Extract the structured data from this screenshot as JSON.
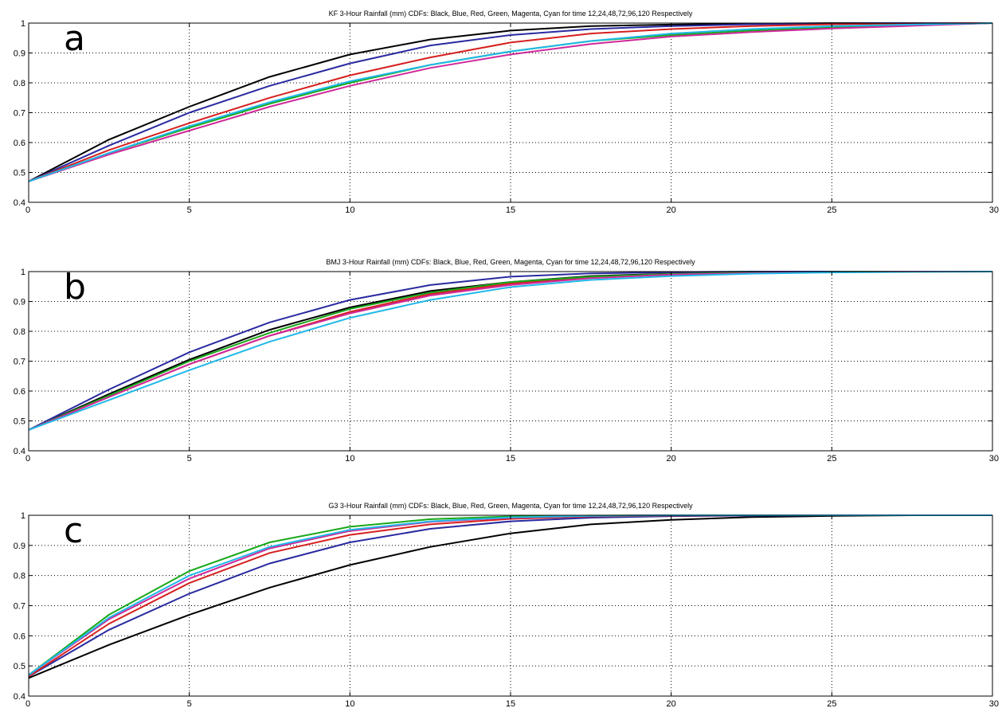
{
  "figure": {
    "x_domain": [
      0,
      30
    ],
    "y_domain": [
      0.4,
      1
    ],
    "x_ticks": [
      0,
      5,
      10,
      15,
      20,
      25,
      30
    ],
    "y_ticks": [
      0.4,
      0.5,
      0.6,
      0.7,
      0.8,
      0.9,
      1
    ],
    "x_tick_labels": [
      "0",
      "5",
      "10",
      "15",
      "20",
      "25",
      "30"
    ],
    "y_tick_labels": [
      "0.4",
      "0.5",
      "0.6",
      "0.7",
      "0.8",
      "0.9",
      "1"
    ]
  },
  "colors": {
    "black": "#000000",
    "blue": "#2a2aa0",
    "red": "#d62020",
    "green": "#18a818",
    "magenta": "#d0289a",
    "cyan": "#20b8e8"
  },
  "chart_data": [
    {
      "type": "line",
      "panel_letter": "a",
      "title": "KF 3-Hour Rainfall (mm) CDFs: Black, Blue, Red, Green, Magenta, Cyan for time 12,24,48,72,96,120 Respectively",
      "xlim": [
        0,
        30
      ],
      "ylim": [
        0.4,
        1
      ],
      "grid": true,
      "x": [
        0,
        2.5,
        5,
        7.5,
        10,
        12.5,
        15,
        17.5,
        20,
        22.5,
        25,
        27.5,
        30
      ],
      "series": [
        {
          "color": "#000000",
          "values": [
            0.47,
            0.61,
            0.72,
            0.82,
            0.895,
            0.945,
            0.975,
            0.99,
            0.995,
            0.998,
            1.0,
            1.0,
            1.0
          ]
        },
        {
          "color": "#2a2aa0",
          "values": [
            0.47,
            0.59,
            0.7,
            0.79,
            0.865,
            0.925,
            0.96,
            0.98,
            0.99,
            0.996,
            0.999,
            1.0,
            1.0
          ]
        },
        {
          "color": "#d62020",
          "values": [
            0.47,
            0.575,
            0.665,
            0.75,
            0.825,
            0.885,
            0.935,
            0.965,
            0.98,
            0.99,
            0.996,
            0.999,
            1.0
          ]
        },
        {
          "color": "#18a818",
          "values": [
            0.47,
            0.565,
            0.65,
            0.73,
            0.8,
            0.86,
            0.905,
            0.94,
            0.96,
            0.975,
            0.985,
            0.993,
            1.0
          ]
        },
        {
          "color": "#d0289a",
          "values": [
            0.47,
            0.56,
            0.64,
            0.72,
            0.79,
            0.85,
            0.895,
            0.93,
            0.955,
            0.97,
            0.982,
            0.991,
            1.0
          ]
        },
        {
          "color": "#20b8e8",
          "values": [
            0.47,
            0.565,
            0.655,
            0.735,
            0.805,
            0.86,
            0.905,
            0.94,
            0.965,
            0.98,
            0.99,
            0.995,
            1.0
          ]
        }
      ]
    },
    {
      "type": "line",
      "panel_letter": "b",
      "title": "BMJ 3-Hour Rainfall (mm) CDFs: Black, Blue, Red, Green, Magenta, Cyan for time 12,24,48,72,96,120 Respectively",
      "xlim": [
        0,
        30
      ],
      "ylim": [
        0.4,
        1
      ],
      "grid": true,
      "x": [
        0,
        2.5,
        5,
        7.5,
        10,
        12.5,
        15,
        17.5,
        20,
        22.5,
        25,
        27.5,
        30
      ],
      "series": [
        {
          "color": "#000000",
          "values": [
            0.47,
            0.59,
            0.705,
            0.805,
            0.88,
            0.935,
            0.965,
            0.985,
            0.993,
            0.997,
            0.999,
            1.0,
            1.0
          ]
        },
        {
          "color": "#2a2aa0",
          "values": [
            0.47,
            0.605,
            0.73,
            0.83,
            0.905,
            0.955,
            0.983,
            0.994,
            0.998,
            1.0,
            1.0,
            1.0,
            1.0
          ]
        },
        {
          "color": "#d62020",
          "values": [
            0.47,
            0.58,
            0.69,
            0.785,
            0.865,
            0.925,
            0.96,
            0.98,
            0.99,
            0.996,
            0.999,
            1.0,
            1.0
          ]
        },
        {
          "color": "#18a818",
          "values": [
            0.47,
            0.585,
            0.7,
            0.795,
            0.875,
            0.93,
            0.965,
            0.983,
            0.992,
            0.997,
            0.999,
            1.0,
            1.0
          ]
        },
        {
          "color": "#d0289a",
          "values": [
            0.47,
            0.58,
            0.69,
            0.785,
            0.86,
            0.92,
            0.955,
            0.978,
            0.99,
            0.995,
            0.998,
            1.0,
            1.0
          ]
        },
        {
          "color": "#20b8e8",
          "values": [
            0.47,
            0.57,
            0.67,
            0.765,
            0.845,
            0.905,
            0.948,
            0.972,
            0.985,
            0.993,
            0.997,
            0.999,
            1.0
          ]
        }
      ]
    },
    {
      "type": "line",
      "panel_letter": "c",
      "title": "G3 3-Hour Rainfall (mm) CDFs: Black, Blue, Red, Green, Magenta, Cyan for time 12,24,48,72,96,120 Respectively",
      "xlim": [
        0,
        30
      ],
      "ylim": [
        0.4,
        1
      ],
      "grid": true,
      "x": [
        0,
        2.5,
        5,
        7.5,
        10,
        12.5,
        15,
        17.5,
        20,
        22.5,
        25,
        27.5,
        30
      ],
      "series": [
        {
          "color": "#000000",
          "values": [
            0.46,
            0.57,
            0.67,
            0.76,
            0.835,
            0.895,
            0.94,
            0.97,
            0.985,
            0.994,
            0.998,
            1.0,
            1.0
          ]
        },
        {
          "color": "#2a2aa0",
          "values": [
            0.465,
            0.62,
            0.74,
            0.84,
            0.91,
            0.955,
            0.98,
            0.992,
            0.997,
            0.999,
            1.0,
            1.0,
            1.0
          ]
        },
        {
          "color": "#d62020",
          "values": [
            0.465,
            0.64,
            0.775,
            0.875,
            0.935,
            0.97,
            0.988,
            0.996,
            0.999,
            1.0,
            1.0,
            1.0,
            1.0
          ]
        },
        {
          "color": "#18a818",
          "values": [
            0.47,
            0.67,
            0.815,
            0.91,
            0.962,
            0.987,
            0.996,
            0.999,
            1.0,
            1.0,
            1.0,
            1.0,
            1.0
          ]
        },
        {
          "color": "#d0289a",
          "values": [
            0.47,
            0.655,
            0.79,
            0.89,
            0.948,
            0.978,
            0.992,
            0.998,
            1.0,
            1.0,
            1.0,
            1.0,
            1.0
          ]
        },
        {
          "color": "#20b8e8",
          "values": [
            0.47,
            0.66,
            0.8,
            0.895,
            0.952,
            0.98,
            0.993,
            0.998,
            1.0,
            1.0,
            1.0,
            1.0,
            1.0
          ]
        }
      ]
    }
  ]
}
